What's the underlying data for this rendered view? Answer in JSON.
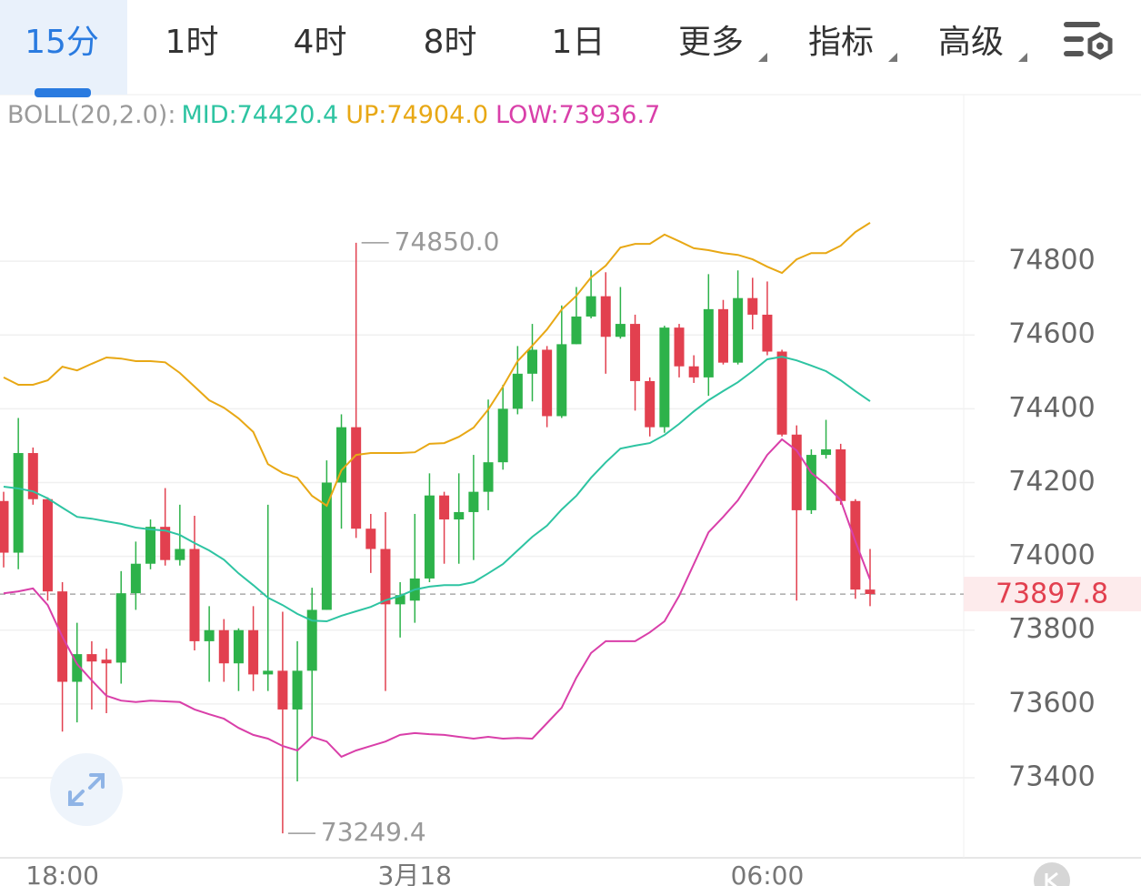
{
  "toolbar": {
    "tabs": [
      "15分",
      "1时",
      "4时",
      "8时",
      "1日",
      "更多",
      "指标",
      "高级"
    ],
    "active_index": 0
  },
  "chart_data": {
    "type": "candlestick",
    "indicator": "BOLL(20,2.0):",
    "categories": [
      null,
      null,
      null,
      null,
      "18:00",
      null,
      null,
      null,
      null,
      null,
      null,
      null,
      null,
      null,
      null,
      null,
      null,
      null,
      null,
      null,
      null,
      null,
      null,
      null,
      null,
      null,
      null,
      null,
      "3月18",
      null,
      null,
      null,
      null,
      null,
      null,
      null,
      null,
      null,
      null,
      null,
      null,
      null,
      null,
      null,
      null,
      null,
      null,
      null,
      null,
      null,
      null,
      null,
      "06:00",
      null,
      null,
      null,
      null,
      null,
      null,
      null
    ],
    "open": [
      74150,
      74010,
      74280,
      74155,
      73905,
      73660,
      73735,
      73720,
      73712,
      73900,
      73980,
      74080,
      73990,
      74020,
      73770,
      73800,
      73710,
      73800,
      73680,
      73690,
      73585,
      73690,
      73855,
      74200,
      74350,
      74075,
      74020,
      73870,
      73880,
      73940,
      74165,
      74100,
      74120,
      74175,
      74255,
      74400,
      74495,
      74560,
      74380,
      74575,
      74650,
      74705,
      74595,
      74630,
      74475,
      74350,
      74620,
      74515,
      74485,
      74670,
      74525,
      74700,
      74655,
      74555,
      74330,
      74125,
      74275,
      74290,
      74150,
      73910
    ],
    "high": [
      74175,
      74375,
      74295,
      74160,
      73930,
      73820,
      73770,
      73750,
      73960,
      74040,
      74100,
      74185,
      74140,
      74110,
      73865,
      73830,
      73805,
      73865,
      74140,
      73850,
      73770,
      73915,
      74260,
      74385,
      74850,
      74115,
      74120,
      73930,
      74115,
      74225,
      74175,
      74225,
      74275,
      74425,
      74465,
      74570,
      74630,
      74570,
      74680,
      74730,
      74775,
      74770,
      74730,
      74655,
      74485,
      74625,
      74630,
      74545,
      74765,
      74695,
      74775,
      74755,
      74745,
      74560,
      74355,
      74290,
      74370,
      74305,
      74155,
      74020
    ],
    "low": [
      73970,
      73965,
      74140,
      73880,
      73525,
      73550,
      73585,
      73575,
      73655,
      73855,
      73965,
      73975,
      73975,
      73745,
      73660,
      73660,
      73635,
      73635,
      73635,
      73249.4,
      73390,
      73510,
      73855,
      74075,
      74050,
      73955,
      73635,
      73780,
      73820,
      73930,
      73980,
      73980,
      73990,
      74125,
      74235,
      74385,
      74420,
      74350,
      74375,
      74575,
      74645,
      74495,
      74590,
      74395,
      74325,
      74335,
      74485,
      74470,
      74435,
      74520,
      74520,
      74615,
      74545,
      74325,
      73880,
      74115,
      74265,
      74140,
      73885,
      73865
    ],
    "close": [
      74010,
      74280,
      74155,
      73905,
      73660,
      73735,
      73715,
      73710,
      73900,
      73980,
      74080,
      73990,
      74020,
      73770,
      73800,
      73710,
      73800,
      73680,
      73690,
      73585,
      73690,
      73855,
      74200,
      74350,
      74075,
      74020,
      73870,
      73895,
      73940,
      74165,
      74100,
      74120,
      74175,
      74255,
      74400,
      74495,
      74560,
      74380,
      74575,
      74650,
      74705,
      74595,
      74630,
      74475,
      74350,
      74620,
      74515,
      74485,
      74670,
      74525,
      74700,
      74655,
      74555,
      74330,
      74125,
      74275,
      74290,
      74150,
      73910,
      73897.8
    ],
    "up_color": "#2db24a",
    "down_color": "#e2404f",
    "series": [
      {
        "name": "MID:74420.4",
        "color": "#2ec4a2",
        "values": [
          74189,
          74184,
          74176,
          74157,
          74132,
          74107,
          74102,
          74095,
          74088,
          74078,
          74073,
          74070,
          74058,
          74036,
          74016,
          73991,
          73954,
          73922,
          73888,
          73868,
          73844,
          73826,
          73824,
          73839,
          73851,
          73863,
          73881,
          73893,
          73910,
          73918,
          73922,
          73922,
          73930,
          73954,
          73979,
          74016,
          74053,
          74083,
          74127,
          74164,
          74213,
          74255,
          74292,
          74300,
          74307,
          74329,
          74359,
          74393,
          74423,
          74448,
          74472,
          74502,
          74534,
          74541,
          74531,
          74517,
          74502,
          74477,
          74448,
          74420.4
        ]
      },
      {
        "name": "UP:74904.0",
        "color": "#e8a815",
        "values": [
          74485,
          74465,
          74465,
          74477,
          74514,
          74504,
          74522,
          74539,
          74536,
          74529,
          74529,
          74526,
          74497,
          74460,
          74423,
          74403,
          74374,
          74337,
          74250,
          74226,
          74213,
          74164,
          74137,
          74233,
          74275,
          74280,
          74280,
          74280,
          74282,
          74305,
          74307,
          74324,
          74349,
          74398,
          74460,
          74529,
          74571,
          74615,
          74669,
          74706,
          74756,
          74788,
          74837,
          74847,
          74847,
          74872,
          74854,
          74835,
          74830,
          74822,
          74817,
          74805,
          74785,
          74768,
          74805,
          74822,
          74822,
          74842,
          74879,
          74904.0
        ]
      },
      {
        "name": "LOW:73936.7",
        "color": "#d93fa9",
        "values": [
          73900,
          73905,
          73913,
          73868,
          73782,
          73708,
          73664,
          73622,
          73609,
          73605,
          73609,
          73607,
          73605,
          73585,
          73572,
          73560,
          73535,
          73516,
          73506,
          73486,
          73474,
          73511,
          73498,
          73457,
          73474,
          73486,
          73498,
          73516,
          73521,
          73518,
          73516,
          73511,
          73506,
          73511,
          73506,
          73508,
          73506,
          73548,
          73590,
          73671,
          73738,
          73770,
          73770,
          73770,
          73794,
          73824,
          73893,
          73979,
          74065,
          74107,
          74152,
          74213,
          74275,
          74317,
          74287,
          74226,
          74194,
          74152,
          74041,
          73936.7
        ]
      }
    ],
    "ylim": [
      73183,
      75249
    ],
    "yticks": [
      73400,
      73600,
      73800,
      74000,
      74200,
      74400,
      74600,
      74800
    ],
    "grid": true,
    "annotations": [
      {
        "value": 74850,
        "label": "74850.0"
      },
      {
        "value": 73249.4,
        "label": "73249.4"
      }
    ],
    "last_price": {
      "value": 73897.8,
      "label": "73897.8"
    }
  }
}
